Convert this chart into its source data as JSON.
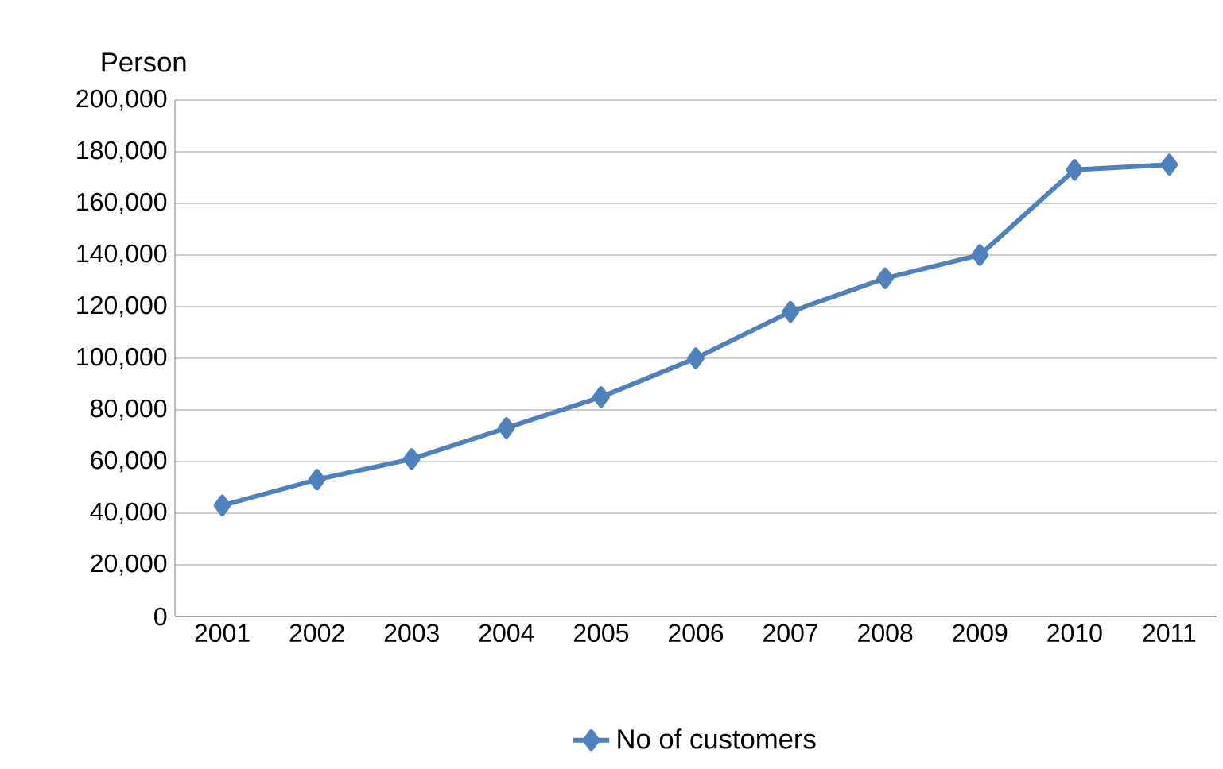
{
  "chart_data": {
    "type": "line",
    "ylabel": "Person",
    "categories": [
      "2001",
      "2002",
      "2003",
      "2004",
      "2005",
      "2006",
      "2007",
      "2008",
      "2009",
      "2010",
      "2011"
    ],
    "series": [
      {
        "name": "No of customers",
        "color": "#4f81bd",
        "values": [
          43000,
          53000,
          61000,
          73000,
          85000,
          100000,
          118000,
          131000,
          140000,
          173000,
          175000
        ]
      }
    ],
    "ylim": [
      0,
      200000
    ],
    "yticks": [
      0,
      {
        "value": 20000,
        "label": "20,000"
      },
      {
        "value": 40000,
        "label": "40,000"
      },
      {
        "value": 60000,
        "label": "60,000"
      },
      {
        "value": 80000,
        "label": "80,000"
      },
      {
        "value": 100000,
        "label": "100,000"
      },
      {
        "value": 120000,
        "label": "120,000"
      },
      {
        "value": 140000,
        "label": "140,000"
      },
      {
        "value": 160000,
        "label": "160,000"
      },
      {
        "value": 180000,
        "label": "180,000"
      },
      {
        "value": 200000,
        "label": "200,000"
      }
    ],
    "grid": "y",
    "legend": "bottom",
    "marker": "diamond",
    "line_style": "solid"
  }
}
